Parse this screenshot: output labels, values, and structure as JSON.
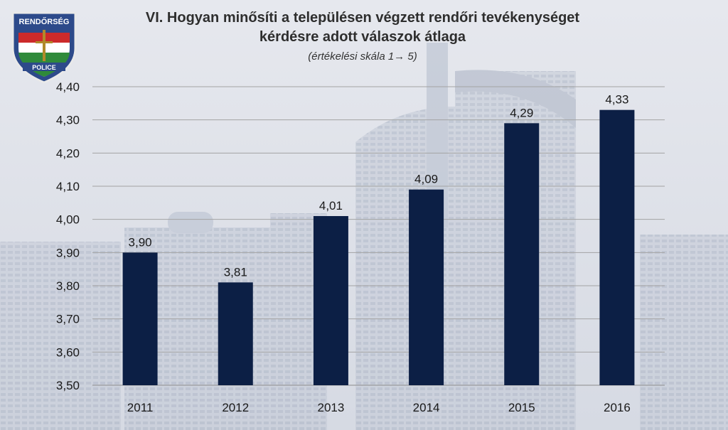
{
  "chart_data": {
    "type": "bar",
    "title_line1": "VI. Hogyan minősíti a településen végzett rendőri tevékenységet",
    "title_line2": "kérdésre adott válaszok átlaga",
    "subtitle": "(értékelési skála 1→ 5)",
    "categories": [
      "2011",
      "2012",
      "2013",
      "2014",
      "2015",
      "2016"
    ],
    "values": [
      3.9,
      3.81,
      4.01,
      4.09,
      4.29,
      4.33
    ],
    "value_labels": [
      "3,90",
      "3,81",
      "4,01",
      "4,09",
      "4,29",
      "4,33"
    ],
    "yticks": [
      "3,50",
      "3,60",
      "3,70",
      "3,80",
      "3,90",
      "4,00",
      "4,10",
      "4,20",
      "4,30",
      "4,40"
    ],
    "ylim": [
      3.5,
      4.4
    ],
    "grid": true,
    "bar_color": "#0c1f45"
  },
  "logo": {
    "top_text": "RENDŐRSÉG",
    "bottom_text": "POLICE"
  }
}
